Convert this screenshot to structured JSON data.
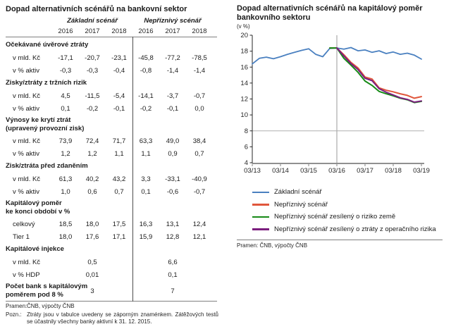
{
  "table": {
    "title": "Dopad alternativních scénářů na bankovní sektor",
    "group_headers": [
      "Základní scénář",
      "Nepříznivý scénář"
    ],
    "year_headers": [
      "2016",
      "2017",
      "2018",
      "2016",
      "2017",
      "2018"
    ],
    "sections": [
      {
        "label": "Očekávané úvěrové ztráty",
        "rows": [
          {
            "label": "v mld. Kč",
            "values": [
              "-17,1",
              "-20,7",
              "-23,1",
              "-45,8",
              "-77,2",
              "-78,5"
            ]
          },
          {
            "label": "v % aktiv",
            "values": [
              "-0,3",
              "-0,3",
              "-0,4",
              "-0,8",
              "-1,4",
              "-1,4"
            ]
          }
        ]
      },
      {
        "label": "Zisky/ztráty z tržních rizik",
        "rows": [
          {
            "label": "v mld. Kč",
            "values": [
              "4,5",
              "-11,5",
              "-5,4",
              "-14,1",
              "-3,7",
              "-0,7"
            ]
          },
          {
            "label": "v % aktiv",
            "values": [
              "0,1",
              "-0,2",
              "-0,1",
              "-0,2",
              "-0,1",
              "0,0"
            ]
          }
        ]
      },
      {
        "label": "Výnosy ke krytí ztrát\n(upravený provozní zisk)",
        "rows": [
          {
            "label": "v mld. Kč",
            "values": [
              "73,9",
              "72,4",
              "71,7",
              "63,3",
              "49,0",
              "38,4"
            ]
          },
          {
            "label": "v % aktiv",
            "values": [
              "1,2",
              "1,2",
              "1,1",
              "1,1",
              "0,9",
              "0,7"
            ]
          }
        ]
      },
      {
        "label": "Zisk/ztráta před zdaněním",
        "rows": [
          {
            "label": "v mld. Kč",
            "values": [
              "61,3",
              "40,2",
              "43,2",
              "3,3",
              "-33,1",
              "-40,9"
            ]
          },
          {
            "label": "v % aktiv",
            "values": [
              "1,0",
              "0,6",
              "0,7",
              "0,1",
              "-0,6",
              "-0,7"
            ]
          }
        ]
      },
      {
        "label": "Kapitálový poměr\nke konci období v %",
        "rows": [
          {
            "label": "celkový",
            "values": [
              "18,5",
              "18,0",
              "17,5",
              "16,3",
              "13,1",
              "12,4"
            ]
          },
          {
            "label": "Tier 1",
            "values": [
              "18,0",
              "17,6",
              "17,1",
              "15,9",
              "12,8",
              "12,1"
            ]
          }
        ]
      },
      {
        "label": "Kapitálové injekce",
        "rows": [
          {
            "label": "v mld. Kč",
            "values": [
              "",
              "0,5",
              "",
              "",
              "6,6",
              ""
            ]
          },
          {
            "label": "v % HDP",
            "values": [
              "",
              "0,01",
              "",
              "",
              "0,1",
              ""
            ]
          }
        ]
      },
      {
        "label": "Počet bank s kapitálovým\npoměrem pod 8 %",
        "values": [
          "",
          "3",
          "",
          "",
          "7",
          ""
        ],
        "rows": []
      }
    ],
    "source_label": "Pramen:",
    "source_text": "ČNB, výpočty ČNB",
    "note_label": "Pozn.:",
    "note_text": "Ztráty jsou v tabulce uvedeny se záporným znaménkem. Zátěžových testů se účastnily všechny banky aktivní k 31. 12. 2015."
  },
  "chart": {
    "title": "Dopad alternativních scénářů na kapitálový poměr\nbankovního sektoru",
    "subtitle": "(v %)",
    "source": "Pramen: ČNB, výpočty ČNB"
  },
  "chart_data": {
    "type": "line",
    "title": "Dopad alternativních scénářů na kapitálový poměr bankovního sektoru",
    "ylabel": "v %",
    "ylim": [
      4,
      20
    ],
    "y_ticks": [
      4,
      6,
      8,
      10,
      12,
      14,
      16,
      18,
      20
    ],
    "x_tick_labels": [
      "03/13",
      "03/14",
      "03/15",
      "03/16",
      "03/17",
      "03/18",
      "03/19"
    ],
    "x_points_per_year": 4,
    "grid": false,
    "legend_position": "bottom",
    "reference_lines": {
      "horizontal_at_y": 8,
      "vertical_at_x_label": "03/16"
    },
    "axis_color": "#262626",
    "ref_line_color": "#b0b0b0",
    "series": [
      {
        "name": "Základní scénář",
        "color": "#4A80C0",
        "start_index": 0,
        "values": [
          16.4,
          17.1,
          17.25,
          17.05,
          17.3,
          17.6,
          17.85,
          18.1,
          18.3,
          17.6,
          17.3,
          18.35,
          18.4,
          18.25,
          18.45,
          18.05,
          18.15,
          17.85,
          18.05,
          17.7,
          17.9,
          17.6,
          17.75,
          17.5,
          17.0
        ]
      },
      {
        "name": "Nepříznivý scénář",
        "color": "#E0573C",
        "start_index": 11,
        "values": [
          18.4,
          18.4,
          17.55,
          16.6,
          15.9,
          14.75,
          14.5,
          13.4,
          13.1,
          12.9,
          12.65,
          12.45,
          12.1,
          12.3
        ]
      },
      {
        "name": "Nepříznivý scénář zesílený o riziko země",
        "color": "#168A16",
        "start_index": 11,
        "values": [
          18.4,
          18.4,
          17.1,
          16.25,
          15.35,
          14.25,
          13.7,
          12.95,
          12.65,
          12.4,
          12.1,
          11.9,
          11.55,
          11.7
        ]
      },
      {
        "name": "Nepříznivý scénář zesílený o ztráty z operačního rizika",
        "color": "#7B1E7E",
        "start_index": 12,
        "values": [
          18.4,
          17.4,
          16.45,
          15.7,
          14.6,
          14.3,
          13.3,
          12.85,
          12.5,
          12.15,
          11.95,
          11.6,
          11.75
        ]
      }
    ]
  }
}
